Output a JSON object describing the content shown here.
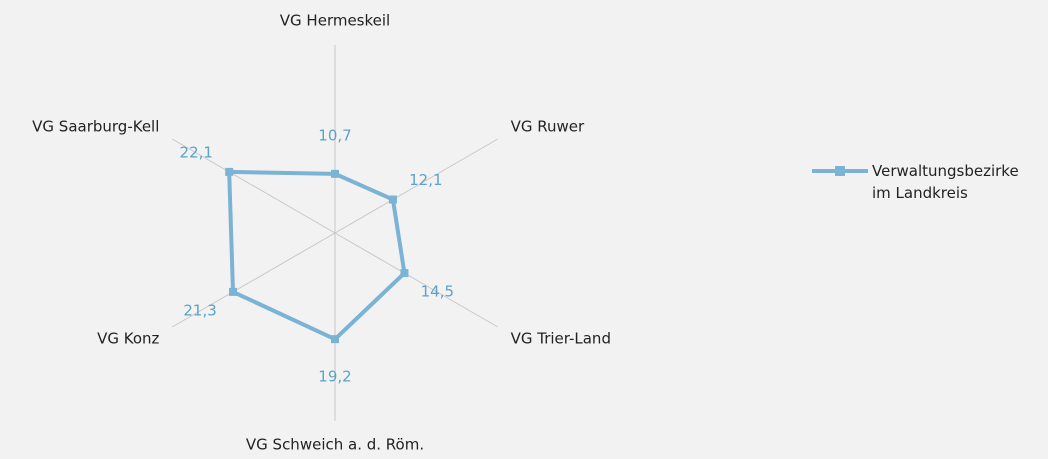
{
  "chart_data": {
    "type": "radar",
    "categories": [
      "VG Hermeskeil",
      "VG Ruwer",
      "VG Trier-Land",
      "VG Schweich a. d. Röm.",
      "VG Konz",
      "VG Saarburg-Kell"
    ],
    "series": [
      {
        "name": "Verwaltungsbezirke im Landkreis",
        "color": "#7ab3d3",
        "values": [
          10.7,
          12.1,
          14.5,
          19.2,
          21.3,
          22.1
        ],
        "value_labels": [
          "10,7",
          "12,1",
          "14,5",
          "19,2",
          "21,3",
          "22,1"
        ]
      }
    ],
    "ylim": [
      0,
      34
    ],
    "grid": true,
    "legend": "right"
  }
}
